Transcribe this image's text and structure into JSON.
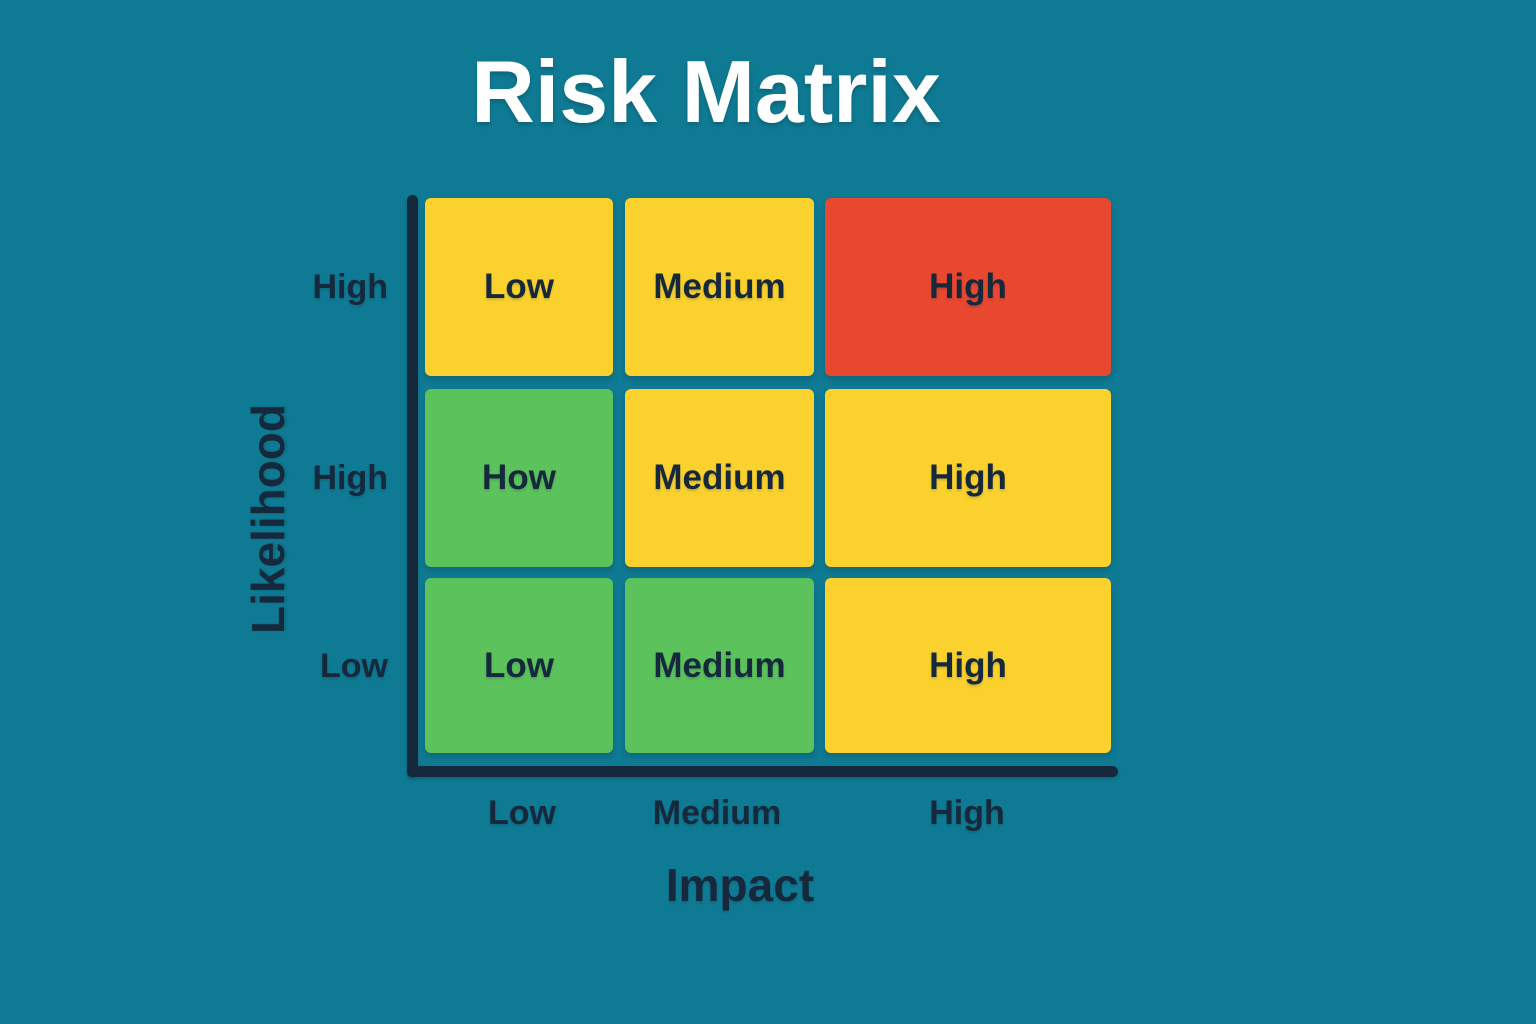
{
  "title": "Risk Matrix",
  "colors": {
    "background": "#0F7A93",
    "title_text": "#FFFFFF",
    "text": "#15283C",
    "axis": "#15283C",
    "low": "#5CC25C",
    "medium": "#FBD12D",
    "high": "#E8482F"
  },
  "chart_data": {
    "type": "heatmap",
    "title": "Risk Matrix",
    "xlabel": "Impact",
    "ylabel": "Likelihood",
    "x_categories": [
      "Low",
      "Medium",
      "High"
    ],
    "y_categories": [
      "High",
      "High",
      "Low"
    ],
    "legend": "none",
    "cells": [
      [
        {
          "label": "Low",
          "level": "medium"
        },
        {
          "label": "Medium",
          "level": "medium"
        },
        {
          "label": "High",
          "level": "high"
        }
      ],
      [
        {
          "label": "How",
          "level": "low"
        },
        {
          "label": "Medium",
          "level": "medium"
        },
        {
          "label": "High",
          "level": "medium"
        }
      ],
      [
        {
          "label": "Low",
          "level": "low"
        },
        {
          "label": "Medium",
          "level": "low"
        },
        {
          "label": "High",
          "level": "medium"
        }
      ]
    ]
  }
}
